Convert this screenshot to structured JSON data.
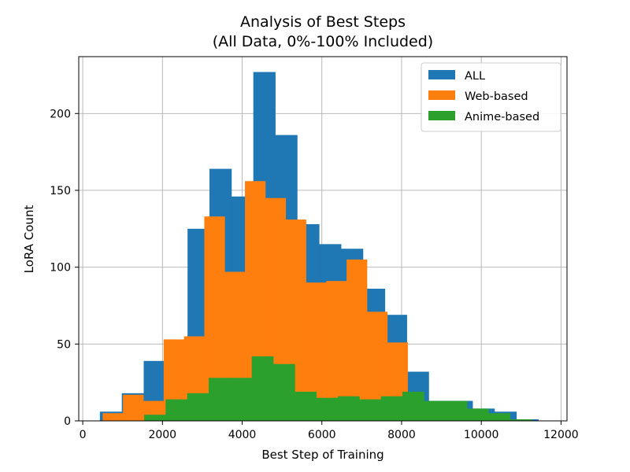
{
  "chart_data": {
    "type": "histogram",
    "title": [
      "Analysis of Best Steps",
      "(All Data, 0%-100% Included)"
    ],
    "xlabel": "Best Step of Training",
    "ylabel": "LoRA Count",
    "xlim": [
      -100,
      12150
    ],
    "ylim": [
      0,
      237
    ],
    "xticks": [
      0,
      2000,
      4000,
      6000,
      8000,
      10000,
      12000
    ],
    "yticks": [
      0,
      50,
      100,
      150,
      200
    ],
    "grid": true,
    "legend": {
      "position": "top-right"
    },
    "series": [
      {
        "name": "ALL",
        "color": "#1f77b4",
        "edges": [
          430,
          980,
          1530,
          2080,
          2630,
          3180,
          3730,
          4280,
          4830,
          5380,
          5930,
          6480,
          7030,
          7580,
          8130,
          8680,
          9230,
          9780,
          10330,
          10880,
          11430
        ],
        "counts": [
          6,
          18,
          39,
          49,
          125,
          164,
          146,
          227,
          186,
          128,
          115,
          112,
          86,
          69,
          32,
          13,
          13,
          8,
          6,
          1
        ]
      },
      {
        "name": "Web-based",
        "color": "#ff7f0e",
        "edges": [
          500,
          1010,
          1520,
          2030,
          2540,
          3050,
          3560,
          4070,
          4580,
          5090,
          5600,
          6110,
          6620,
          7130,
          7640,
          8150
        ],
        "counts": [
          5,
          17,
          13,
          53,
          55,
          133,
          97,
          156,
          145,
          131,
          90,
          91,
          105,
          71,
          51
        ]
      },
      {
        "name": "Anime-based",
        "color": "#2ca02c",
        "edges": [
          1540,
          2080,
          2620,
          3160,
          3700,
          4240,
          4780,
          5320,
          5860,
          6400,
          6940,
          7480,
          8020,
          8560,
          9100,
          9640,
          10180,
          10720,
          11260,
          11800
        ],
        "counts": [
          4,
          14,
          18,
          28,
          28,
          42,
          37,
          19,
          15,
          16,
          14,
          16,
          19,
          13,
          13,
          8,
          5,
          1,
          0
        ]
      }
    ]
  }
}
